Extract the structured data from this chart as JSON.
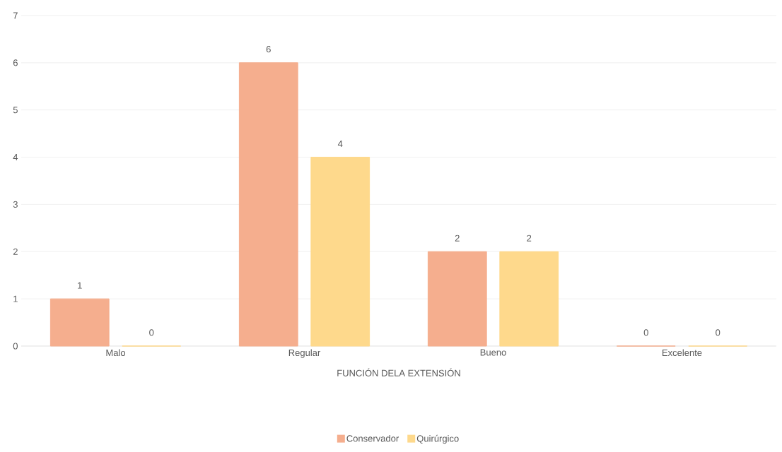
{
  "chart_data": {
    "type": "bar",
    "xlabel": "FUNCIÓN DELA EXTENSIÓN",
    "categories": [
      "Malo",
      "Regular",
      "Bueno",
      "Excelente"
    ],
    "series": [
      {
        "name": "Conservador",
        "color": "#f5ae8e",
        "values": [
          1,
          6,
          2,
          0
        ],
        "value_labels": [
          "1",
          "6",
          "2",
          "0"
        ]
      },
      {
        "name": "Quirúrgico",
        "color": "#fed98c",
        "values": [
          0,
          4,
          2,
          0
        ],
        "value_labels": [
          "0",
          "4",
          "2",
          "0"
        ]
      }
    ],
    "ylim": [
      0,
      7
    ],
    "yticks": [
      0,
      1,
      2,
      3,
      4,
      5,
      6,
      7
    ],
    "grid": "y",
    "legend": "bottom"
  }
}
